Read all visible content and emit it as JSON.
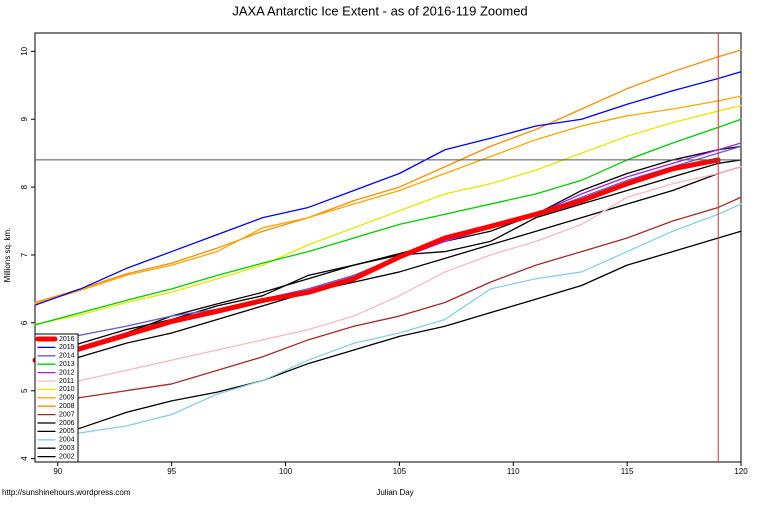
{
  "chart_data": {
    "type": "line",
    "title": "JAXA Antarctic Ice Extent - as of 2016-119 Zoomed",
    "x_label": "Julian Day",
    "y_label": "Millions sq. km.",
    "footer": "http://sunshinehours.wordpress.com",
    "x": [
      89,
      91,
      93,
      95,
      97,
      99,
      101,
      103,
      105,
      107,
      109,
      111,
      113,
      115,
      117,
      119,
      120
    ],
    "xlim": [
      89,
      120
    ],
    "xticks": [
      90,
      95,
      100,
      105,
      110,
      115,
      120
    ],
    "ylim": [
      3.95,
      10.27
    ],
    "yticks": [
      4,
      5,
      6,
      7,
      8,
      9,
      10
    ],
    "hline": 8.4,
    "vline": 119,
    "vline_color": "#cc3333",
    "legend": "bottom-left",
    "series": [
      {
        "name": "2016",
        "color": "#ff0000",
        "width": 5,
        "values": [
          5.45,
          5.62,
          5.82,
          6.02,
          6.17,
          6.33,
          6.45,
          6.65,
          6.97,
          7.25,
          7.42,
          7.6,
          7.8,
          8.05,
          8.27,
          8.4,
          null
        ]
      },
      {
        "name": "2015",
        "color": "#0000ff",
        "values": [
          6.26,
          6.5,
          6.8,
          7.05,
          7.3,
          7.55,
          7.7,
          7.95,
          8.2,
          8.55,
          8.72,
          8.9,
          9.0,
          9.22,
          9.42,
          9.6,
          9.7
        ]
      },
      {
        "name": "2014",
        "color": "#6a5acd",
        "values": [
          5.7,
          5.82,
          5.95,
          6.1,
          6.2,
          6.35,
          6.5,
          6.7,
          6.98,
          7.25,
          7.4,
          7.6,
          7.85,
          8.1,
          8.3,
          8.5,
          8.6
        ]
      },
      {
        "name": "2013",
        "color": "#00cc00",
        "values": [
          5.97,
          6.15,
          6.33,
          6.5,
          6.7,
          6.88,
          7.05,
          7.25,
          7.45,
          7.6,
          7.75,
          7.9,
          8.1,
          8.4,
          8.65,
          8.88,
          9.0
        ]
      },
      {
        "name": "2012",
        "color": "#a020f0",
        "values": [
          5.5,
          5.65,
          5.85,
          6.0,
          6.2,
          6.35,
          6.5,
          6.7,
          6.95,
          7.2,
          7.4,
          7.6,
          7.9,
          8.15,
          8.35,
          8.55,
          8.65
        ]
      },
      {
        "name": "2011",
        "color": "#ffb6c1",
        "values": [
          4.95,
          5.15,
          5.3,
          5.45,
          5.6,
          5.75,
          5.9,
          6.1,
          6.4,
          6.75,
          7.0,
          7.2,
          7.45,
          7.85,
          8.05,
          8.2,
          8.3
        ]
      },
      {
        "name": "2010",
        "color": "#e8e800",
        "values": [
          5.98,
          6.12,
          6.3,
          6.45,
          6.65,
          6.85,
          7.15,
          7.4,
          7.65,
          7.9,
          8.05,
          8.25,
          8.5,
          8.75,
          8.95,
          9.12,
          9.2
        ]
      },
      {
        "name": "2009",
        "color": "#ffa500",
        "values": [
          6.28,
          6.48,
          6.7,
          6.85,
          7.05,
          7.4,
          7.55,
          7.75,
          7.95,
          8.2,
          8.45,
          8.7,
          8.9,
          9.05,
          9.15,
          9.27,
          9.34
        ]
      },
      {
        "name": "2008",
        "color": "#ff8c00",
        "values": [
          6.3,
          6.5,
          6.72,
          6.88,
          7.1,
          7.35,
          7.55,
          7.8,
          8.0,
          8.3,
          8.6,
          8.85,
          9.15,
          9.45,
          9.7,
          9.92,
          10.02
        ]
      },
      {
        "name": "2007",
        "color": "#a52a2a",
        "values": [
          4.7,
          4.9,
          5.0,
          5.1,
          5.3,
          5.5,
          5.75,
          5.95,
          6.1,
          6.3,
          6.6,
          6.85,
          7.05,
          7.25,
          7.5,
          7.7,
          7.85
        ]
      },
      {
        "name": "2006",
        "color": "#000000",
        "values": [
          5.3,
          5.5,
          5.7,
          5.85,
          6.05,
          6.25,
          6.45,
          6.6,
          6.75,
          6.95,
          7.15,
          7.35,
          7.55,
          7.75,
          7.95,
          8.2,
          8.3
        ]
      },
      {
        "name": "2005",
        "color": "#000000",
        "values": [
          5.4,
          5.65,
          5.85,
          6.1,
          6.28,
          6.45,
          6.65,
          6.85,
          7.02,
          7.2,
          7.35,
          7.6,
          7.95,
          8.2,
          8.4,
          8.55,
          8.6
        ]
      },
      {
        "name": "2004",
        "color": "#87ceeb",
        "values": [
          4.3,
          4.38,
          4.48,
          4.65,
          4.95,
          5.15,
          5.45,
          5.7,
          5.85,
          6.05,
          6.5,
          6.65,
          6.75,
          7.05,
          7.35,
          7.6,
          7.75
        ]
      },
      {
        "name": "2003",
        "color": "#000000",
        "values": [
          5.45,
          5.7,
          5.9,
          6.05,
          6.25,
          6.4,
          6.7,
          6.85,
          7.0,
          7.05,
          7.2,
          7.55,
          7.75,
          7.95,
          8.15,
          8.35,
          8.4
        ]
      },
      {
        "name": "2002",
        "color": "#000000",
        "values": [
          4.25,
          4.45,
          4.68,
          4.85,
          4.98,
          5.15,
          5.4,
          5.6,
          5.8,
          5.95,
          6.15,
          6.35,
          6.55,
          6.85,
          7.05,
          7.25,
          7.35
        ]
      }
    ]
  }
}
